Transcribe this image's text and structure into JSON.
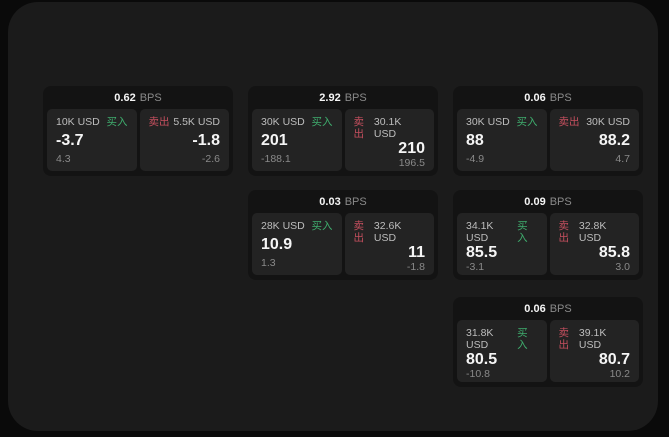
{
  "colors": {
    "page_bg": "#0a0a0a",
    "panel_bg": "#1b1b1b",
    "card_bg": "#131313",
    "tile_bg": "#232323",
    "buy_green": "#3fae6e",
    "sell_red": "#c44f5e",
    "text_primary": "#f5f5f5",
    "text_muted": "#8a8a8a"
  },
  "labels": {
    "bps_unit": "BPS",
    "buy": "买入",
    "sell": "卖出"
  },
  "cards": [
    {
      "bps": "0.62",
      "buy": {
        "amount": "10K USD",
        "price": "-3.7",
        "delta": "4.3"
      },
      "sell": {
        "amount": "5.5K USD",
        "price": "-1.8",
        "delta": "-2.6"
      }
    },
    {
      "bps": "2.92",
      "buy": {
        "amount": "30K USD",
        "price": "201",
        "delta": "-188.1"
      },
      "sell": {
        "amount": "30.1K USD",
        "price": "210",
        "delta": "196.5"
      }
    },
    {
      "bps": "0.06",
      "buy": {
        "amount": "30K USD",
        "price": "88",
        "delta": "-4.9"
      },
      "sell": {
        "amount": "30K USD",
        "price": "88.2",
        "delta": "4.7"
      }
    },
    {
      "bps": "0.03",
      "buy": {
        "amount": "28K USD",
        "price": "10.9",
        "delta": "1.3"
      },
      "sell": {
        "amount": "32.6K USD",
        "price": "11",
        "delta": "-1.8"
      }
    },
    {
      "bps": "0.09",
      "buy": {
        "amount": "34.1K USD",
        "price": "85.5",
        "delta": "-3.1"
      },
      "sell": {
        "amount": "32.8K USD",
        "price": "85.8",
        "delta": "3.0"
      }
    },
    {
      "bps": "0.06",
      "buy": {
        "amount": "31.8K USD",
        "price": "80.5",
        "delta": "-10.8"
      },
      "sell": {
        "amount": "39.1K USD",
        "price": "80.7",
        "delta": "10.2"
      }
    }
  ]
}
